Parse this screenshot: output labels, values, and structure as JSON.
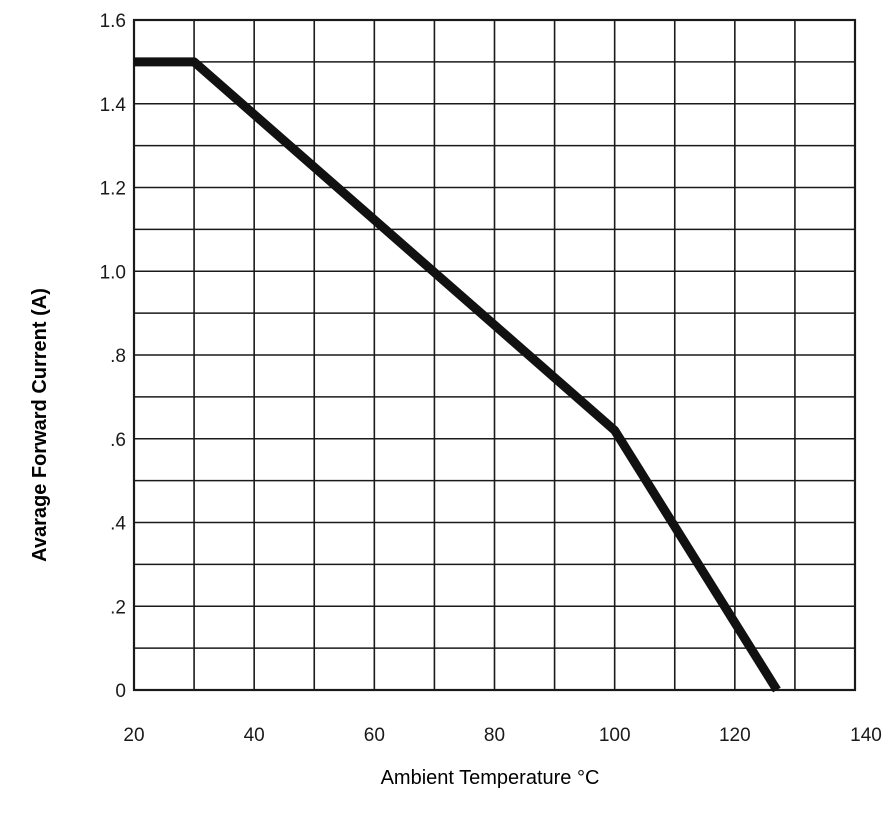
{
  "chart_data": {
    "type": "line",
    "title": "",
    "xlabel": "Ambient Temperature °C",
    "ylabel": "Avarage Forward Current (A)",
    "xlim": [
      20,
      140
    ],
    "ylim": [
      0,
      1.6
    ],
    "grid": true,
    "x_tick_labels": [
      "20",
      "40",
      "60",
      "80",
      "100",
      "120",
      "140"
    ],
    "x_tick_values": [
      20,
      40,
      60,
      80,
      100,
      120,
      140
    ],
    "y_tick_labels": [
      "0",
      ".2",
      ".4",
      ".6",
      ".8",
      "1.0",
      "1.2",
      "1.4",
      "1.6"
    ],
    "y_tick_values": [
      0,
      0.2,
      0.4,
      0.6,
      0.8,
      1.0,
      1.2,
      1.4,
      1.6
    ],
    "series": [
      {
        "x": [
          20,
          30,
          100,
          127
        ],
        "y": [
          1.5,
          1.5,
          0.62,
          0.0
        ]
      }
    ],
    "colors": {
      "line": "#111111",
      "grid": "#1a1a1a",
      "background": "#ffffff"
    }
  }
}
